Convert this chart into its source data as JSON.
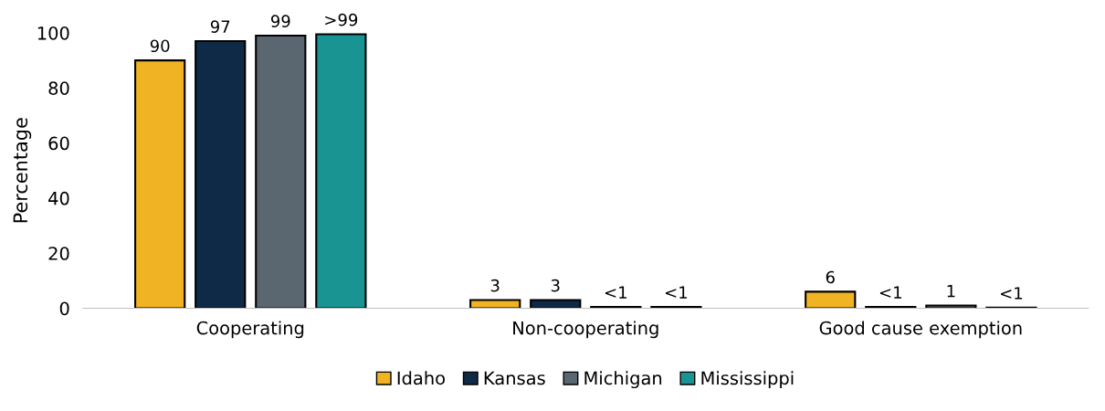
{
  "chart_data": {
    "type": "bar",
    "ylabel": "Percentage",
    "categories": [
      "Cooperating",
      "Non-cooperating",
      "Good cause exemption"
    ],
    "series": [
      {
        "name": "Idaho",
        "color": "#f0b323",
        "values": [
          90,
          3,
          6
        ],
        "value_labels": [
          "90",
          "3",
          "6"
        ]
      },
      {
        "name": "Kansas",
        "color": "#0f2a47",
        "values": [
          97,
          3,
          0.5
        ],
        "value_labels": [
          "97",
          "3",
          "<1"
        ]
      },
      {
        "name": "Michigan",
        "color": "#5a6770",
        "values": [
          99,
          0.5,
          1
        ],
        "value_labels": [
          "99",
          "<1",
          "1"
        ]
      },
      {
        "name": "Mississippi",
        "color": "#1a9393",
        "values": [
          99.5,
          0.5,
          0.2
        ],
        "value_labels": [
          ">99",
          "<1",
          "<1"
        ]
      }
    ],
    "ylim": [
      0,
      100
    ],
    "yticks": [
      0,
      20,
      40,
      60,
      80,
      100
    ],
    "grid": false,
    "legend": "bottom"
  }
}
